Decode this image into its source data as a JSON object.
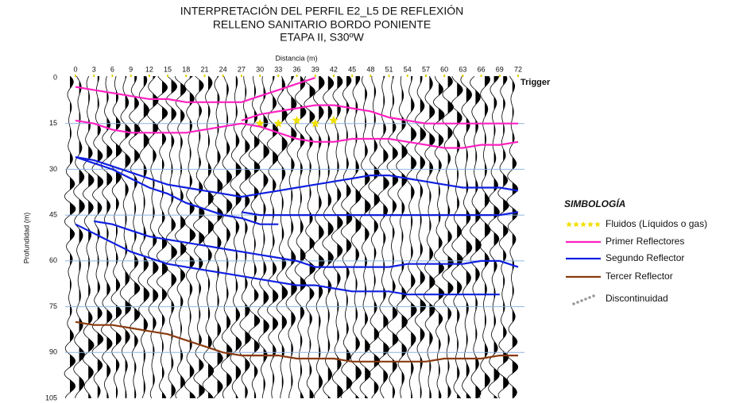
{
  "chart_data": {
    "type": "line",
    "title": [
      "INTERPRETACIÓN DEL PERFIL E2_L5 DE REFLEXIÓN",
      "RELLENO SANITARIO BORDO PONIENTE",
      "ETAPA II, S30ºW"
    ],
    "x_label": "Distancia (m)",
    "y_label": "Profundidad (m)",
    "annotation": "Trigger",
    "legend_title": "SIMBOLOGÍA",
    "x": [
      0,
      3,
      6,
      9,
      12,
      15,
      18,
      21,
      24,
      27,
      30,
      33,
      36,
      39,
      42,
      45,
      48,
      51,
      54,
      57,
      60,
      63,
      66,
      69,
      72
    ],
    "xlim": [
      0,
      72
    ],
    "xticks": [
      0,
      3,
      6,
      9,
      12,
      15,
      18,
      21,
      24,
      27,
      30,
      33,
      36,
      39,
      42,
      45,
      48,
      51,
      54,
      57,
      60,
      63,
      66,
      69,
      72
    ],
    "ylim": [
      0,
      105
    ],
    "yticks": [
      0,
      15,
      30,
      45,
      60,
      75,
      90,
      105
    ],
    "y_inverted": true,
    "grid": true,
    "grid_color": "#8fb4e0",
    "series": [
      {
        "name": "Fluidos (Líquidos o gas)",
        "color": "#f0e000",
        "style": "stars",
        "lines": [
          [
            null,
            null,
            null,
            null,
            null,
            null,
            null,
            null,
            null,
            null,
            15,
            15,
            14,
            15,
            14,
            null,
            null,
            null,
            null,
            null,
            null,
            null,
            null,
            null,
            null
          ]
        ]
      },
      {
        "name": "Primer Reflectores",
        "color": "#ff20c0",
        "style": "line",
        "lines": [
          [
            3,
            4,
            5,
            6,
            7,
            7,
            8,
            8,
            8,
            8,
            6,
            4,
            2,
            0,
            null,
            null,
            null,
            null,
            null,
            null,
            null,
            null,
            null,
            null,
            null
          ],
          [
            null,
            null,
            null,
            null,
            null,
            null,
            null,
            null,
            null,
            14,
            12,
            11,
            10,
            9,
            9,
            10,
            11,
            13,
            14,
            15,
            15,
            15,
            15,
            15,
            15
          ],
          [
            14,
            15,
            17,
            18,
            18,
            18,
            18,
            17,
            16,
            15,
            16,
            18,
            20,
            21,
            21,
            20,
            20,
            20,
            21,
            22,
            23,
            23,
            22,
            22,
            21
          ]
        ]
      },
      {
        "name": "Segundo Reflector",
        "color": "#1020e0",
        "style": "line",
        "lines": [
          [
            26,
            27,
            29,
            31,
            33,
            35,
            36,
            37,
            38,
            39,
            38,
            37,
            36,
            35,
            34,
            33,
            32,
            32,
            33,
            34,
            35,
            36,
            36,
            36,
            37
          ],
          [
            26,
            28,
            30,
            33,
            36,
            38,
            41,
            43,
            45,
            46,
            48,
            48,
            null,
            null,
            null,
            null,
            null,
            null,
            null,
            null,
            null,
            null,
            null,
            null,
            null
          ],
          [
            null,
            null,
            null,
            null,
            null,
            null,
            null,
            null,
            null,
            44,
            45,
            45,
            45,
            45,
            45,
            45,
            45,
            45,
            45,
            45,
            45,
            45,
            45,
            45,
            44
          ],
          [
            null,
            47,
            48,
            50,
            52,
            53,
            54,
            55,
            56,
            57,
            58,
            59,
            60,
            62,
            62,
            62,
            62,
            62,
            61,
            61,
            61,
            61,
            60,
            60,
            62
          ],
          [
            48,
            51,
            54,
            57,
            59,
            61,
            62,
            63,
            64,
            65,
            66,
            67,
            68,
            68,
            69,
            70,
            70,
            70,
            71,
            71,
            71,
            71,
            71,
            71,
            null
          ]
        ]
      },
      {
        "name": "Tercer Reflector",
        "color": "#8a3a10",
        "style": "line",
        "lines": [
          [
            80,
            81,
            81,
            82,
            83,
            84,
            86,
            88,
            90,
            91,
            91,
            91,
            92,
            92,
            92,
            93,
            93,
            93,
            93,
            93,
            92,
            92,
            92,
            91,
            91
          ]
        ]
      },
      {
        "name": "Discontinuidad",
        "color": "#999999",
        "style": "dots",
        "lines": []
      }
    ]
  }
}
